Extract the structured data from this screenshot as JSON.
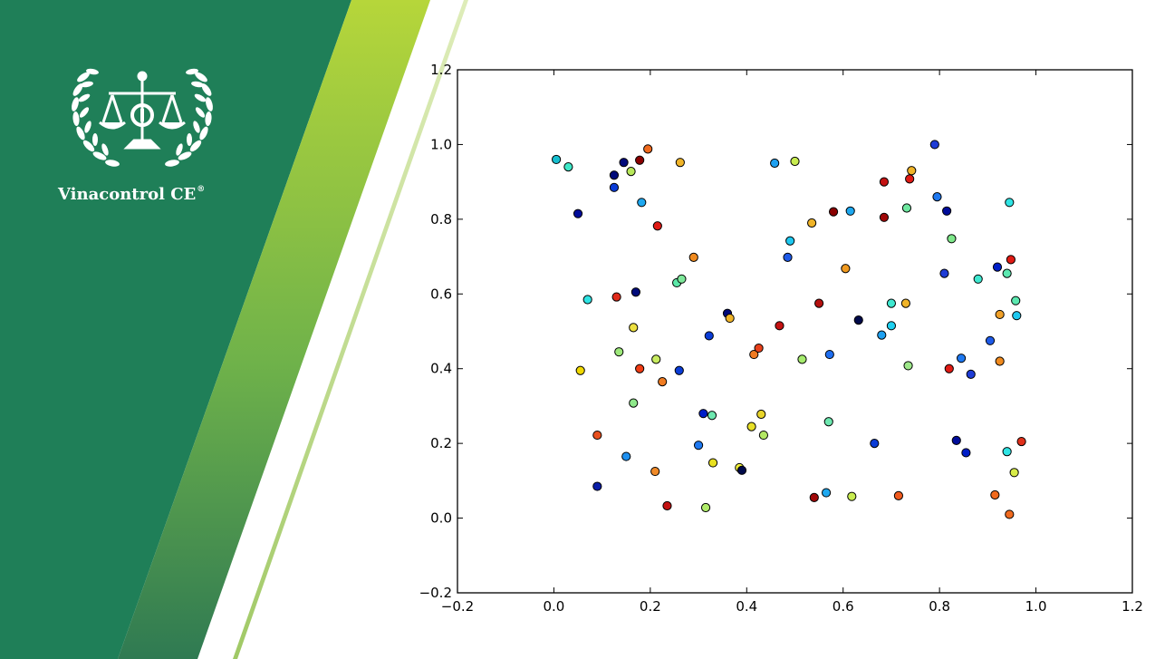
{
  "brand": {
    "name": "Vinacontrol CE",
    "mark": "®"
  },
  "colors": {
    "green_dark": "#1f7f58",
    "green_light": "#a6ce39",
    "point_edge": "#000000"
  },
  "chart_data": {
    "type": "scatter",
    "title": "",
    "xlabel": "",
    "ylabel": "",
    "xlim": [
      -0.2,
      1.2
    ],
    "ylim": [
      -0.2,
      1.2
    ],
    "xticks": [
      "−0.2",
      "0.0",
      "0.2",
      "0.4",
      "0.6",
      "0.8",
      "1.0",
      "1.2"
    ],
    "yticks": [
      "−0.2",
      "0.0",
      "0.2",
      "0.4",
      "0.6",
      "0.8",
      "1.0",
      "1.2"
    ],
    "grid": false,
    "colormap": "jet",
    "points": [
      {
        "x": 0.005,
        "y": 0.96,
        "color": "#17becf"
      },
      {
        "x": 0.03,
        "y": 0.94,
        "color": "#3fe8c8"
      },
      {
        "x": 0.05,
        "y": 0.815,
        "color": "#000c9a"
      },
      {
        "x": 0.055,
        "y": 0.395,
        "color": "#f0d800"
      },
      {
        "x": 0.07,
        "y": 0.585,
        "color": "#2fe4e4"
      },
      {
        "x": 0.09,
        "y": 0.222,
        "color": "#e8501e"
      },
      {
        "x": 0.09,
        "y": 0.085,
        "color": "#0a1ea8"
      },
      {
        "x": 0.125,
        "y": 0.918,
        "color": "#000a7a"
      },
      {
        "x": 0.125,
        "y": 0.885,
        "color": "#0a3cd6"
      },
      {
        "x": 0.13,
        "y": 0.592,
        "color": "#e02a1a"
      },
      {
        "x": 0.135,
        "y": 0.445,
        "color": "#9de87a"
      },
      {
        "x": 0.145,
        "y": 0.952,
        "color": "#000a7a"
      },
      {
        "x": 0.15,
        "y": 0.165,
        "color": "#1e90f0"
      },
      {
        "x": 0.16,
        "y": 0.928,
        "color": "#b8e85a"
      },
      {
        "x": 0.165,
        "y": 0.308,
        "color": "#8ee88a"
      },
      {
        "x": 0.165,
        "y": 0.51,
        "color": "#ede040"
      },
      {
        "x": 0.17,
        "y": 0.605,
        "color": "#000a7a"
      },
      {
        "x": 0.178,
        "y": 0.958,
        "color": "#8a0000"
      },
      {
        "x": 0.178,
        "y": 0.4,
        "color": "#f03c14"
      },
      {
        "x": 0.182,
        "y": 0.845,
        "color": "#1ea8f0"
      },
      {
        "x": 0.195,
        "y": 0.988,
        "color": "#f06a1e"
      },
      {
        "x": 0.21,
        "y": 0.125,
        "color": "#f08a28"
      },
      {
        "x": 0.212,
        "y": 0.425,
        "color": "#c8ec60"
      },
      {
        "x": 0.215,
        "y": 0.782,
        "color": "#e01a14"
      },
      {
        "x": 0.225,
        "y": 0.365,
        "color": "#f07c22"
      },
      {
        "x": 0.235,
        "y": 0.033,
        "color": "#c41212"
      },
      {
        "x": 0.255,
        "y": 0.63,
        "color": "#5ce8a8"
      },
      {
        "x": 0.26,
        "y": 0.395,
        "color": "#0a3cd6"
      },
      {
        "x": 0.262,
        "y": 0.952,
        "color": "#f0b428"
      },
      {
        "x": 0.265,
        "y": 0.64,
        "color": "#7ee89a"
      },
      {
        "x": 0.29,
        "y": 0.698,
        "color": "#f08a1e"
      },
      {
        "x": 0.3,
        "y": 0.195,
        "color": "#1e78f0"
      },
      {
        "x": 0.31,
        "y": 0.28,
        "color": "#001ec8"
      },
      {
        "x": 0.315,
        "y": 0.028,
        "color": "#b0ec6a"
      },
      {
        "x": 0.322,
        "y": 0.488,
        "color": "#0a3cd6"
      },
      {
        "x": 0.328,
        "y": 0.275,
        "color": "#6ee8b0"
      },
      {
        "x": 0.33,
        "y": 0.148,
        "color": "#e8e020"
      },
      {
        "x": 0.36,
        "y": 0.548,
        "color": "#000a7a"
      },
      {
        "x": 0.365,
        "y": 0.535,
        "color": "#f0b428"
      },
      {
        "x": 0.385,
        "y": 0.135,
        "color": "#f0ee3a"
      },
      {
        "x": 0.39,
        "y": 0.128,
        "color": "#000a4a"
      },
      {
        "x": 0.41,
        "y": 0.245,
        "color": "#e8e028"
      },
      {
        "x": 0.415,
        "y": 0.438,
        "color": "#f07a22"
      },
      {
        "x": 0.425,
        "y": 0.455,
        "color": "#e8401a"
      },
      {
        "x": 0.43,
        "y": 0.278,
        "color": "#e8d42a"
      },
      {
        "x": 0.435,
        "y": 0.222,
        "color": "#b4e864"
      },
      {
        "x": 0.458,
        "y": 0.95,
        "color": "#1ea0f0"
      },
      {
        "x": 0.468,
        "y": 0.515,
        "color": "#c41212"
      },
      {
        "x": 0.485,
        "y": 0.698,
        "color": "#1e5ae8"
      },
      {
        "x": 0.49,
        "y": 0.742,
        "color": "#1ec8f0"
      },
      {
        "x": 0.5,
        "y": 0.955,
        "color": "#c8ec50"
      },
      {
        "x": 0.515,
        "y": 0.425,
        "color": "#a6ec6e"
      },
      {
        "x": 0.535,
        "y": 0.79,
        "color": "#f0b428"
      },
      {
        "x": 0.54,
        "y": 0.055,
        "color": "#a00808"
      },
      {
        "x": 0.55,
        "y": 0.575,
        "color": "#b4100e"
      },
      {
        "x": 0.565,
        "y": 0.068,
        "color": "#1ea8f0"
      },
      {
        "x": 0.57,
        "y": 0.258,
        "color": "#6ee8b0"
      },
      {
        "x": 0.572,
        "y": 0.438,
        "color": "#1e6ef0"
      },
      {
        "x": 0.58,
        "y": 0.82,
        "color": "#8a0000"
      },
      {
        "x": 0.605,
        "y": 0.668,
        "color": "#f09a20"
      },
      {
        "x": 0.615,
        "y": 0.822,
        "color": "#1ea8f0"
      },
      {
        "x": 0.618,
        "y": 0.058,
        "color": "#c8ec50"
      },
      {
        "x": 0.632,
        "y": 0.53,
        "color": "#000a4a"
      },
      {
        "x": 0.665,
        "y": 0.2,
        "color": "#0a3cd6"
      },
      {
        "x": 0.68,
        "y": 0.49,
        "color": "#1ea0f0"
      },
      {
        "x": 0.685,
        "y": 0.9,
        "color": "#c41212"
      },
      {
        "x": 0.685,
        "y": 0.805,
        "color": "#a00808"
      },
      {
        "x": 0.7,
        "y": 0.575,
        "color": "#3fe8d0"
      },
      {
        "x": 0.7,
        "y": 0.515,
        "color": "#1ed0f0"
      },
      {
        "x": 0.715,
        "y": 0.06,
        "color": "#f05a1e"
      },
      {
        "x": 0.73,
        "y": 0.575,
        "color": "#f0b428"
      },
      {
        "x": 0.732,
        "y": 0.83,
        "color": "#6ee8a0"
      },
      {
        "x": 0.735,
        "y": 0.408,
        "color": "#9ee88a"
      },
      {
        "x": 0.738,
        "y": 0.908,
        "color": "#e01a14"
      },
      {
        "x": 0.742,
        "y": 0.93,
        "color": "#f0b428"
      },
      {
        "x": 0.79,
        "y": 1.0,
        "color": "#1e3cd6"
      },
      {
        "x": 0.795,
        "y": 0.86,
        "color": "#1e78f0"
      },
      {
        "x": 0.81,
        "y": 0.655,
        "color": "#1e3cd6"
      },
      {
        "x": 0.815,
        "y": 0.822,
        "color": "#000c9a"
      },
      {
        "x": 0.82,
        "y": 0.4,
        "color": "#e01a14"
      },
      {
        "x": 0.825,
        "y": 0.748,
        "color": "#7ee88a"
      },
      {
        "x": 0.835,
        "y": 0.208,
        "color": "#000c9a"
      },
      {
        "x": 0.845,
        "y": 0.428,
        "color": "#1e78f0"
      },
      {
        "x": 0.855,
        "y": 0.175,
        "color": "#001ec8"
      },
      {
        "x": 0.865,
        "y": 0.385,
        "color": "#1e3cd6"
      },
      {
        "x": 0.88,
        "y": 0.64,
        "color": "#3fe8d0"
      },
      {
        "x": 0.905,
        "y": 0.475,
        "color": "#1e5ae8"
      },
      {
        "x": 0.915,
        "y": 0.062,
        "color": "#f06a1e"
      },
      {
        "x": 0.92,
        "y": 0.672,
        "color": "#001ec8"
      },
      {
        "x": 0.925,
        "y": 0.42,
        "color": "#f08a1e"
      },
      {
        "x": 0.925,
        "y": 0.545,
        "color": "#f0a028"
      },
      {
        "x": 0.94,
        "y": 0.178,
        "color": "#2fe4e4"
      },
      {
        "x": 0.94,
        "y": 0.655,
        "color": "#5ce8b0"
      },
      {
        "x": 0.945,
        "y": 0.845,
        "color": "#2fe4e4"
      },
      {
        "x": 0.945,
        "y": 0.01,
        "color": "#f06a1e"
      },
      {
        "x": 0.948,
        "y": 0.692,
        "color": "#e01a14"
      },
      {
        "x": 0.955,
        "y": 0.122,
        "color": "#d8ec48"
      },
      {
        "x": 0.958,
        "y": 0.582,
        "color": "#5ce8b0"
      },
      {
        "x": 0.96,
        "y": 0.542,
        "color": "#1ec8f0"
      },
      {
        "x": 0.97,
        "y": 0.205,
        "color": "#e0301a"
      }
    ]
  }
}
